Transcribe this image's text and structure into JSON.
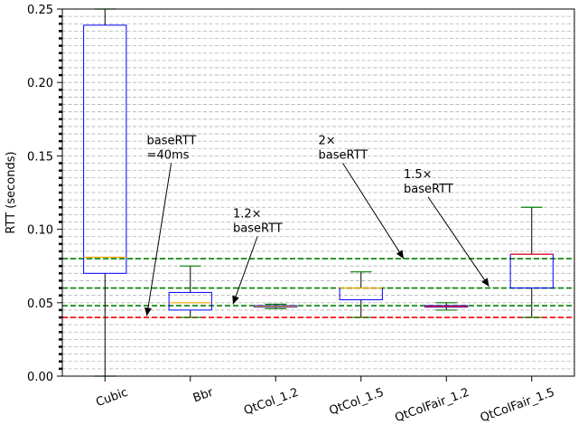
{
  "chart_data": {
    "type": "box",
    "title": "",
    "xlabel": "",
    "ylabel": "RTT (seconds)",
    "ylim": [
      0,
      0.25
    ],
    "yticks": [
      0.0,
      0.05,
      0.1,
      0.15,
      0.2,
      0.25
    ],
    "ytick_labels": [
      "0.00",
      "0.05",
      "0.10",
      "0.15",
      "0.20",
      "0.25"
    ],
    "y_minor_step": 0.005,
    "grid": "horizontal-dashed",
    "categories": [
      "Cubic",
      "Bbr",
      "QtCol_1.2",
      "QtCol_1.5",
      "QtColFair_1.2",
      "QtColFair_1.5"
    ],
    "boxes": [
      {
        "whislo": 0.0,
        "q1": 0.07,
        "med": 0.081,
        "q3": 0.239,
        "whishi": 0.25,
        "median_color": "#ffa500",
        "cap_color": "#008000"
      },
      {
        "whislo": 0.04,
        "q1": 0.045,
        "med": 0.05,
        "q3": 0.057,
        "whishi": 0.075,
        "median_color": "#ffa500",
        "cap_color": "#008000"
      },
      {
        "whislo": 0.046,
        "q1": 0.047,
        "med": 0.0475,
        "q3": 0.048,
        "whishi": 0.049,
        "median_color": "#ffa500",
        "cap_color": "#008000"
      },
      {
        "whislo": 0.04,
        "q1": 0.052,
        "med": 0.06,
        "q3": 0.06,
        "whishi": 0.071,
        "median_color": "#ffa500",
        "cap_color": "#008000"
      },
      {
        "whislo": 0.045,
        "q1": 0.047,
        "med": 0.0475,
        "q3": 0.048,
        "whishi": 0.05,
        "median_color": "#ff0000",
        "cap_color": "#008000"
      },
      {
        "whislo": 0.04,
        "q1": 0.06,
        "med": 0.083,
        "q3": 0.083,
        "whishi": 0.115,
        "median_color": "#ff0000",
        "cap_color": "#008000"
      }
    ],
    "reference_lines": [
      {
        "y": 0.04,
        "color": "#ff0000",
        "style": "dashed"
      },
      {
        "y": 0.048,
        "color": "#008000",
        "style": "dashed"
      },
      {
        "y": 0.06,
        "color": "#008000",
        "style": "dashed"
      },
      {
        "y": 0.08,
        "color": "#008000",
        "style": "dashed"
      }
    ],
    "annotations": [
      {
        "lines": [
          "baseRTT",
          "=40ms"
        ],
        "text_x": 1.49,
        "text_y": 0.158,
        "arrow_x": 1.49,
        "arrow_y": 0.041
      },
      {
        "lines": [
          "1.2×",
          "baseRTT"
        ],
        "text_x": 2.5,
        "text_y": 0.108,
        "arrow_x": 2.5,
        "arrow_y": 0.049
      },
      {
        "lines": [
          "2×",
          "baseRTT"
        ],
        "text_x": 3.5,
        "text_y": 0.158,
        "arrow_x": 4.5,
        "arrow_y": 0.08
      },
      {
        "lines": [
          "1.5×",
          "baseRTT"
        ],
        "text_x": 4.5,
        "text_y": 0.135,
        "arrow_x": 5.5,
        "arrow_y": 0.061
      }
    ],
    "colors": {
      "box": "#0000ff",
      "whisker": "#000000",
      "grid": "#b0b0b0"
    }
  }
}
